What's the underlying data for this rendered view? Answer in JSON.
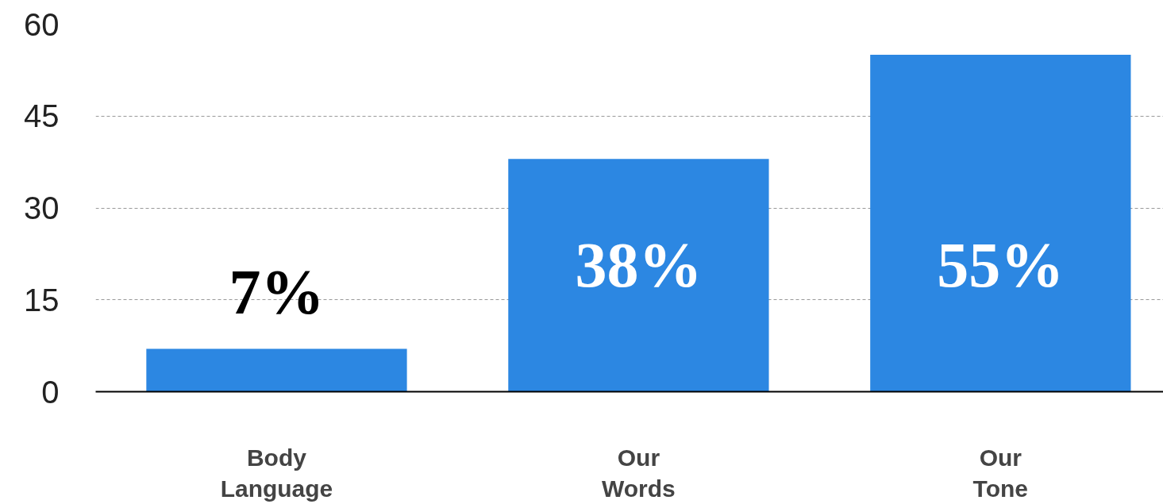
{
  "chart_data": {
    "type": "bar",
    "categories": [
      "Body Language",
      "Our Words",
      "Our Tone"
    ],
    "values": [
      7,
      38,
      55
    ],
    "value_labels": [
      "7%",
      "38%",
      "55%"
    ],
    "color": "#2c87e2",
    "ylim": [
      0,
      60
    ],
    "yticks": [
      0,
      15,
      30,
      45,
      60
    ],
    "grid": "y"
  }
}
